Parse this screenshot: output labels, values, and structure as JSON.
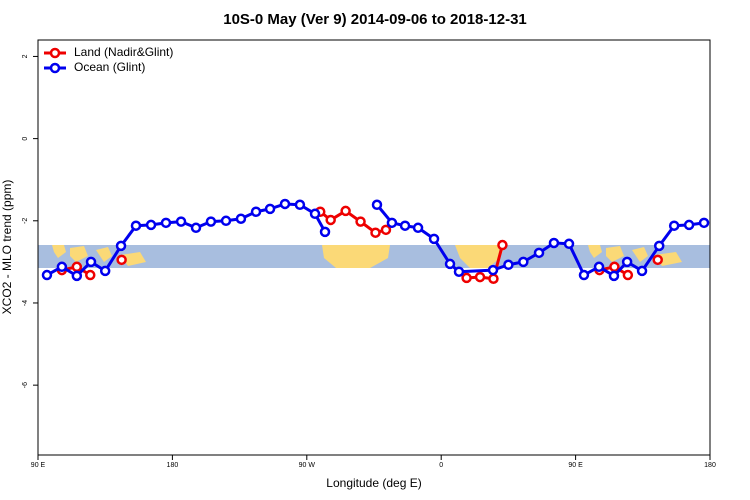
{
  "chart_data": {
    "type": "line",
    "title": "10S-0 May (Ver 9)   2014-09-06 to 2018-12-31",
    "x_label": "Longitude (deg E)",
    "y_label": "XCO2 - MLO trend (ppm)",
    "xlim": [
      90,
      540
    ],
    "xticks": [
      {
        "value": 90,
        "label": "90 E"
      },
      180,
      {
        "value": 270,
        "label": "90 W"
      },
      {
        "value": 360,
        "label": "0"
      },
      {
        "value": 450,
        "label": "90 E"
      },
      {
        "value": 540,
        "label": "180"
      }
    ],
    "ylim": [
      -7.7,
      2.4
    ],
    "yticks": [
      2,
      0,
      -2,
      -4,
      -6
    ],
    "legend": "top-left",
    "series": [
      {
        "name": "Land (Nadir&Glint)",
        "color": "#ee0000",
        "x": [
          106,
          116,
          125,
          null,
          146,
          null,
          279,
          286,
          296,
          306,
          316,
          323,
          null,
          377,
          386,
          395,
          401,
          null,
          466,
          476,
          485,
          null,
          505
        ],
        "values": [
          -3.2,
          -3.12,
          -3.32,
          null,
          -2.95,
          null,
          -1.78,
          -1.98,
          -1.76,
          -2.02,
          -2.29,
          -2.22,
          null,
          -3.39,
          -3.37,
          -3.41,
          -2.59,
          null,
          -3.2,
          -3.12,
          -3.32,
          null,
          -2.95
        ]
      },
      {
        "name": "Ocean (Glint)",
        "color": "#0000ee",
        "x": [
          96,
          106,
          116,
          125.5,
          135,
          145.6,
          155.6,
          165.7,
          175.7,
          185.8,
          195.8,
          205.8,
          215.9,
          225.9,
          236,
          245.4,
          255.4,
          265.4,
          275.5,
          282.2,
          null,
          317,
          327,
          335.8,
          344.5,
          355.2,
          365.9,
          371.9,
          394.7,
          405,
          415,
          425.5,
          435.5,
          445.6,
          455.6,
          465.7,
          475.7,
          484.5,
          494.5,
          506,
          516,
          526,
          536
        ],
        "values": [
          -3.32,
          -3.12,
          -3.34,
          -3.0,
          -3.22,
          -2.61,
          -2.12,
          -2.1,
          -2.05,
          -2.02,
          -2.17,
          -2.02,
          -2.0,
          -1.95,
          -1.78,
          -1.71,
          -1.59,
          -1.61,
          -1.83,
          -2.27,
          null,
          -1.61,
          -2.05,
          -2.12,
          -2.17,
          -2.44,
          -3.05,
          -3.24,
          -3.2,
          -3.07,
          -3.0,
          -2.78,
          -2.54,
          -2.56,
          -3.32,
          -3.12,
          -3.34,
          -3.0,
          -3.22,
          -2.61,
          -2.12,
          -2.1,
          -2.05
        ]
      }
    ]
  }
}
